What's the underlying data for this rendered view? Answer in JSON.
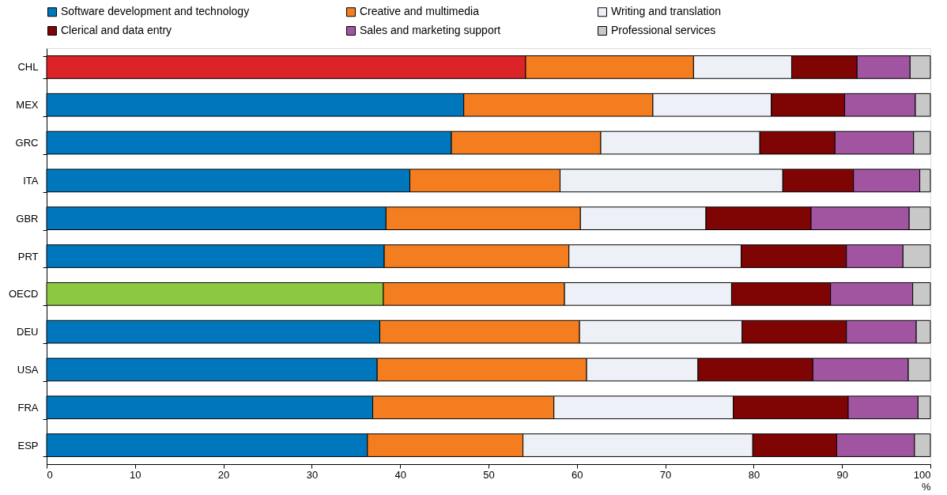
{
  "chart_data": {
    "type": "bar",
    "orientation": "horizontal",
    "stacked": true,
    "xlabel": "%",
    "categories": [
      "CHL",
      "MEX",
      "GRC",
      "ITA",
      "GBR",
      "PRT",
      "OECD",
      "DEU",
      "USA",
      "FRA",
      "ESP"
    ],
    "series": [
      {
        "name": "Software development and technology",
        "color": "#0077bd",
        "colors": [
          "#dc2327",
          "#0077bd",
          "#0077bd",
          "#0077bd",
          "#0077bd",
          "#0077bd",
          "#8cc841",
          "#0077bd",
          "#0077bd",
          "#0077bd",
          "#0077bd"
        ],
        "values": [
          54.2,
          47.2,
          45.8,
          41.1,
          38.4,
          38.2,
          38.1,
          37.7,
          37.4,
          36.9,
          36.3
        ]
      },
      {
        "name": "Creative and multimedia",
        "color": "#f47d20",
        "values": [
          19.0,
          21.4,
          16.9,
          17.0,
          22.0,
          20.9,
          20.5,
          22.6,
          23.7,
          20.5,
          17.6
        ]
      },
      {
        "name": "Writing and translation",
        "color": "#edf0f7",
        "values": [
          11.1,
          13.4,
          18.0,
          25.2,
          14.2,
          19.5,
          18.9,
          18.4,
          12.6,
          20.3,
          26.0
        ]
      },
      {
        "name": "Clerical and data entry",
        "color": "#7f0505",
        "values": [
          7.4,
          8.3,
          8.5,
          8.0,
          11.9,
          11.9,
          11.2,
          11.8,
          13.0,
          13.0,
          9.5
        ]
      },
      {
        "name": "Sales and marketing support",
        "color": "#a155a1",
        "values": [
          6.0,
          8.0,
          8.9,
          7.5,
          11.1,
          6.4,
          9.3,
          7.9,
          10.8,
          7.9,
          8.8
        ]
      },
      {
        "name": "Professional services",
        "color": "#c8c8c8",
        "values": [
          2.3,
          1.7,
          1.9,
          1.2,
          2.4,
          3.1,
          2.0,
          1.6,
          2.5,
          1.4,
          1.8
        ]
      }
    ],
    "xlim": [
      0,
      100
    ],
    "xticks": [
      0,
      10,
      20,
      30,
      40,
      50,
      60,
      70,
      80,
      90,
      100
    ],
    "grid": false,
    "legend": "top"
  }
}
